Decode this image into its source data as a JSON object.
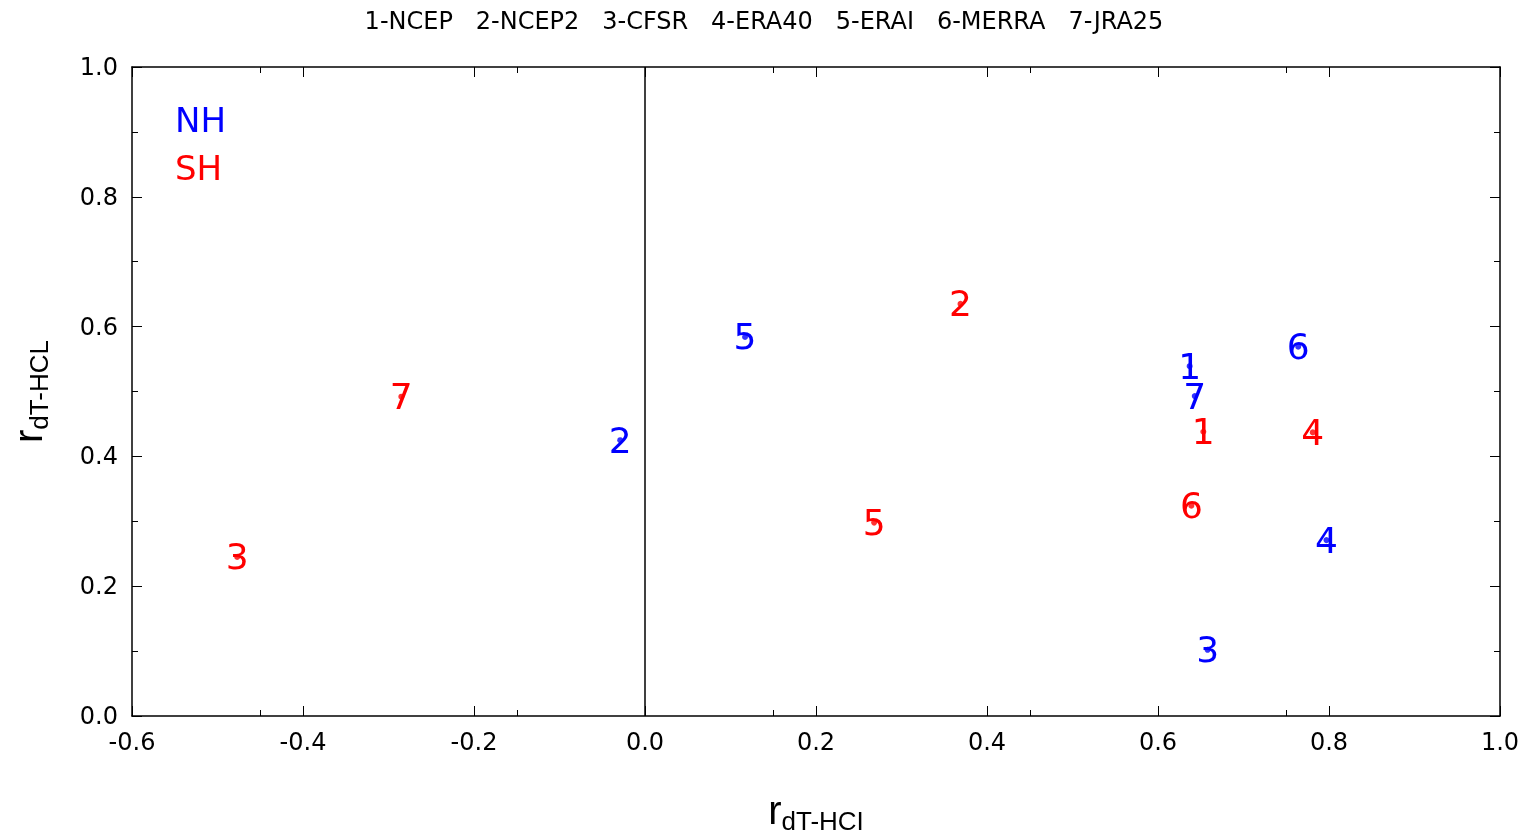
{
  "chart_data": {
    "type": "scatter",
    "title": "1-NCEP   2-NCEP2   3-CFSR   4-ERA40   5-ERAI   6-MERRA   7-JRA25",
    "xlabel": "r$_{dT-HCI}$",
    "ylabel": "r$_{dT-HCL}$",
    "xlim": [
      -0.6,
      1.0
    ],
    "ylim": [
      0,
      1.0
    ],
    "xticks": [
      -0.6,
      -0.4,
      -0.2,
      {
        "value": 0,
        "label": "0.0"
      },
      0.2,
      0.4,
      0.6,
      0.8,
      {
        "value": 1.0,
        "label": "1.0"
      }
    ],
    "yticks": [
      {
        "value": 0,
        "label": "0.0"
      },
      0.2,
      0.4,
      0.6,
      0.8,
      {
        "value": 1.0,
        "label": "1.0"
      }
    ],
    "grid": false,
    "legend": "top left",
    "marker": "circle",
    "ref_lines": [
      {
        "axis": "x",
        "value": 0,
        "color": "#000000"
      }
    ],
    "series": [
      {
        "name": "NH",
        "color": "#0000ff",
        "x": [
          0.637,
          -0.029,
          0.658,
          0.797,
          0.117,
          0.764,
          0.643
        ],
        "values": [
          0.539,
          0.425,
          0.102,
          0.271,
          0.584,
          0.569,
          0.493
        ]
      },
      {
        "name": "SH",
        "color": "#ff0000",
        "x": [
          0.653,
          0.369,
          -0.477,
          0.781,
          0.268,
          0.639,
          -0.285
        ],
        "values": [
          0.438,
          0.635,
          0.245,
          0.437,
          0.298,
          0.324,
          0.492
        ]
      }
    ],
    "annotations": [
      {
        "text": "1",
        "x": 0.637,
        "y": 0.539
      },
      {
        "text": "2",
        "x": -0.029,
        "y": 0.425
      },
      {
        "text": "3",
        "x": 0.658,
        "y": 0.102
      },
      {
        "text": "4",
        "x": 0.797,
        "y": 0.271
      },
      {
        "text": "5",
        "x": 0.117,
        "y": 0.584
      },
      {
        "text": "6",
        "x": 0.764,
        "y": 0.569
      },
      {
        "text": "7",
        "x": 0.643,
        "y": 0.493
      },
      {
        "text": "1",
        "x": 0.653,
        "y": 0.438
      },
      {
        "text": "2",
        "x": 0.369,
        "y": 0.635
      },
      {
        "text": "3",
        "x": -0.477,
        "y": 0.245
      },
      {
        "text": "4",
        "x": 0.781,
        "y": 0.437
      },
      {
        "text": "5",
        "x": 0.268,
        "y": 0.298
      },
      {
        "text": "6",
        "x": 0.639,
        "y": 0.324
      },
      {
        "text": "7",
        "x": -0.285,
        "y": 0.492
      }
    ]
  }
}
